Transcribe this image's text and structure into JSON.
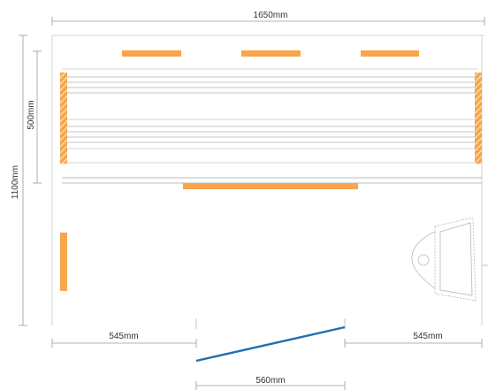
{
  "dimensions": {
    "total_width": "1650mm",
    "total_height": "1100mm",
    "bench_height": "500mm",
    "left_gap": "545mm",
    "right_gap": "545mm",
    "door_width": "560mm"
  },
  "colors": {
    "heater": "#f7a64a",
    "door": "#1f6fb5",
    "line": "#9a9a9a",
    "light_line": "#c8c8c8",
    "text": "#333333"
  },
  "icons": {
    "heater_panel": "orange-heater-panel",
    "side_heater": "striped-heater-panel",
    "door": "door-swing-line",
    "seat": "chair-seat-outline"
  }
}
